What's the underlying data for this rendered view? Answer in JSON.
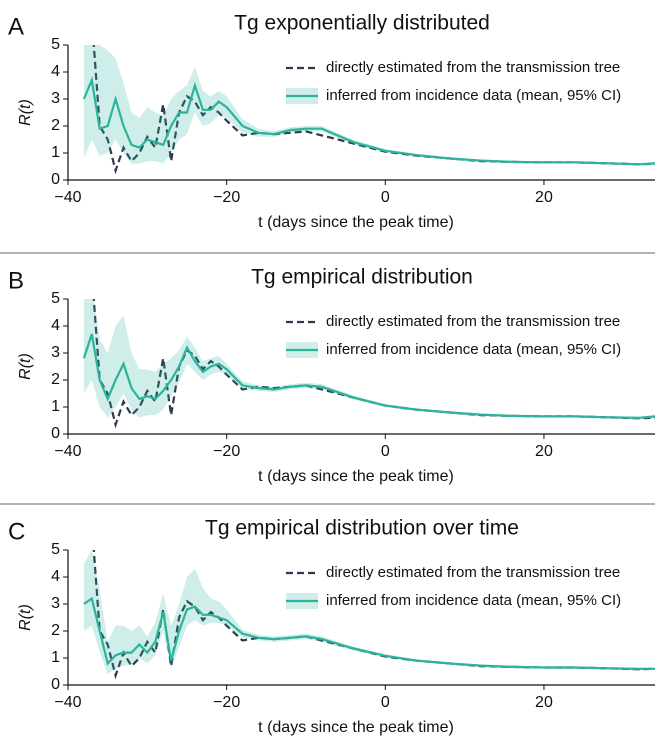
{
  "chart_data": [
    {
      "type": "line",
      "panel": "A",
      "title": "Tg exponentially distributed",
      "xlabel": "t (days since the peak time)",
      "ylabel": "R(t)",
      "xlim": [
        -40,
        34
      ],
      "ylim": [
        0,
        5
      ],
      "xticks": [
        {
          "value": -40,
          "label": "−40"
        },
        {
          "value": -20,
          "label": "−20"
        },
        0,
        20
      ],
      "yticks": [
        0,
        1,
        2,
        3,
        4,
        5
      ],
      "legend": "upper right",
      "x": [
        -38,
        -37,
        -36,
        -35,
        -34,
        -33,
        -32,
        -31,
        -30,
        -29,
        -28,
        -27,
        -26,
        -25,
        -24,
        -23,
        -22,
        -21,
        -20,
        -18,
        -16,
        -14,
        -12,
        -10,
        -8,
        -4,
        0,
        4,
        8,
        12,
        16,
        20,
        24,
        28,
        32,
        34
      ],
      "series": [
        {
          "name": "directly estimated from the transmission tree",
          "color": "#2b3a4f",
          "style": "dashed",
          "values": [
            null,
            6,
            2.0,
            1.5,
            0.35,
            1.2,
            0.7,
            1.0,
            1.6,
            1.2,
            2.8,
            0.7,
            2.5,
            3.1,
            2.9,
            2.4,
            2.7,
            2.5,
            2.2,
            1.65,
            1.75,
            1.7,
            1.75,
            1.8,
            1.65,
            1.35,
            1.05,
            0.9,
            0.8,
            0.7,
            0.67,
            0.65,
            0.65,
            0.62,
            0.58,
            0.6
          ]
        },
        {
          "name": "inferred from incidence data (mean, 95% CI)",
          "color": "#2bb39b",
          "style": "solid",
          "values": [
            3.0,
            3.7,
            1.9,
            2.0,
            3.0,
            2.0,
            1.3,
            1.2,
            1.5,
            1.4,
            1.3,
            2.0,
            2.5,
            2.5,
            3.5,
            2.6,
            2.6,
            2.9,
            2.7,
            2.0,
            1.75,
            1.7,
            1.85,
            1.9,
            1.9,
            1.4,
            1.08,
            0.92,
            0.8,
            0.72,
            0.67,
            0.65,
            0.65,
            0.62,
            0.58,
            0.62
          ],
          "ci_lower": [
            0.8,
            1.5,
            0.9,
            1.0,
            1.5,
            1.0,
            0.6,
            0.6,
            0.7,
            0.7,
            0.6,
            1.0,
            1.5,
            1.7,
            2.5,
            2.0,
            2.1,
            2.4,
            2.3,
            1.75,
            1.6,
            1.6,
            1.75,
            1.8,
            1.8,
            1.32,
            1.02,
            0.87,
            0.76,
            0.68,
            0.63,
            0.61,
            0.61,
            0.58,
            0.54,
            0.57
          ],
          "ci_upper": [
            5,
            6,
            5,
            4.8,
            4.5,
            3.6,
            2.5,
            2.3,
            2.7,
            2.5,
            2.4,
            3.0,
            3.3,
            3.5,
            4.2,
            3.3,
            3.1,
            3.3,
            3.1,
            2.25,
            1.9,
            1.8,
            1.95,
            2.0,
            2.0,
            1.48,
            1.14,
            0.97,
            0.84,
            0.76,
            0.71,
            0.69,
            0.69,
            0.66,
            0.62,
            0.67
          ]
        }
      ]
    },
    {
      "type": "line",
      "panel": "B",
      "title": "Tg empirical distribution",
      "xlabel": "t (days since the peak time)",
      "ylabel": "R(t)",
      "xlim": [
        -40,
        34
      ],
      "ylim": [
        0,
        5
      ],
      "xticks": [
        {
          "value": -40,
          "label": "−40"
        },
        {
          "value": -20,
          "label": "−20"
        },
        0,
        20
      ],
      "yticks": [
        0,
        1,
        2,
        3,
        4,
        5
      ],
      "legend": "upper right",
      "x": [
        -38,
        -37,
        -36,
        -35,
        -34,
        -33,
        -32,
        -31,
        -30,
        -29,
        -28,
        -27,
        -26,
        -25,
        -24,
        -23,
        -22,
        -21,
        -20,
        -18,
        -16,
        -14,
        -12,
        -10,
        -8,
        -4,
        0,
        4,
        8,
        12,
        16,
        20,
        24,
        28,
        32,
        34
      ],
      "series": [
        {
          "name": "directly estimated from the transmission tree",
          "color": "#2b3a4f",
          "style": "dashed",
          "values": [
            null,
            6,
            2.0,
            1.5,
            0.35,
            1.2,
            0.7,
            1.0,
            1.6,
            1.2,
            2.8,
            0.7,
            2.5,
            3.1,
            2.9,
            2.4,
            2.7,
            2.5,
            2.2,
            1.65,
            1.75,
            1.7,
            1.75,
            1.8,
            1.65,
            1.35,
            1.05,
            0.9,
            0.8,
            0.7,
            0.67,
            0.65,
            0.65,
            0.62,
            0.58,
            0.6
          ]
        },
        {
          "name": "inferred from incidence data (mean, 95% CI)",
          "color": "#2bb39b",
          "style": "solid",
          "values": [
            2.8,
            3.7,
            2.0,
            1.3,
            2.0,
            2.6,
            1.7,
            1.3,
            1.4,
            1.3,
            1.6,
            2.0,
            2.5,
            3.2,
            2.7,
            2.3,
            2.5,
            2.6,
            2.4,
            1.8,
            1.7,
            1.65,
            1.75,
            1.8,
            1.75,
            1.35,
            1.05,
            0.9,
            0.8,
            0.72,
            0.67,
            0.65,
            0.65,
            0.62,
            0.6,
            0.65
          ],
          "ci_lower": [
            1.5,
            2.0,
            1.0,
            0.6,
            1.0,
            1.5,
            0.9,
            0.6,
            0.7,
            0.7,
            0.9,
            1.4,
            1.9,
            2.6,
            2.3,
            2.0,
            2.2,
            2.3,
            2.2,
            1.65,
            1.6,
            1.55,
            1.65,
            1.7,
            1.65,
            1.28,
            1.0,
            0.85,
            0.76,
            0.68,
            0.63,
            0.61,
            0.61,
            0.58,
            0.56,
            0.6
          ],
          "ci_upper": [
            5,
            5.5,
            3.5,
            3.0,
            4.0,
            4.4,
            3.0,
            2.4,
            2.4,
            2.3,
            2.6,
            2.8,
            3.1,
            3.6,
            3.2,
            2.7,
            2.8,
            2.9,
            2.6,
            1.95,
            1.8,
            1.75,
            1.85,
            1.9,
            1.85,
            1.42,
            1.1,
            0.95,
            0.84,
            0.76,
            0.71,
            0.69,
            0.69,
            0.66,
            0.64,
            0.7
          ]
        }
      ]
    },
    {
      "type": "line",
      "panel": "C",
      "title": "Tg empirical distribution over time",
      "xlabel": "t (days since the peak time)",
      "ylabel": "R(t)",
      "xlim": [
        -40,
        34
      ],
      "ylim": [
        0,
        5
      ],
      "xticks": [
        {
          "value": -40,
          "label": "−40"
        },
        {
          "value": -20,
          "label": "−20"
        },
        0,
        20
      ],
      "yticks": [
        0,
        1,
        2,
        3,
        4,
        5
      ],
      "legend": "upper right",
      "x": [
        -38,
        -37,
        -36,
        -35,
        -34,
        -33,
        -32,
        -31,
        -30,
        -29,
        -28,
        -27,
        -26,
        -25,
        -24,
        -23,
        -22,
        -21,
        -20,
        -18,
        -16,
        -14,
        -12,
        -10,
        -8,
        -4,
        0,
        4,
        8,
        12,
        16,
        20,
        24,
        28,
        32,
        34
      ],
      "series": [
        {
          "name": "directly estimated from the transmission tree",
          "color": "#2b3a4f",
          "style": "dashed",
          "values": [
            null,
            6,
            2.0,
            1.5,
            0.35,
            1.2,
            0.7,
            1.0,
            1.6,
            1.2,
            2.8,
            0.7,
            2.5,
            3.1,
            2.9,
            2.4,
            2.7,
            2.5,
            2.2,
            1.65,
            1.75,
            1.7,
            1.75,
            1.8,
            1.65,
            1.35,
            1.05,
            0.9,
            0.8,
            0.7,
            0.67,
            0.65,
            0.65,
            0.62,
            0.58,
            0.6
          ]
        },
        {
          "name": "inferred from incidence data (mean, 95% CI)",
          "color": "#2bb39b",
          "style": "solid",
          "values": [
            3.0,
            3.2,
            2.0,
            0.8,
            1.1,
            1.2,
            1.2,
            1.5,
            1.2,
            1.6,
            2.7,
            0.9,
            2.0,
            2.8,
            2.9,
            2.6,
            2.6,
            2.5,
            2.4,
            1.9,
            1.75,
            1.7,
            1.75,
            1.8,
            1.7,
            1.35,
            1.08,
            0.9,
            0.8,
            0.72,
            0.67,
            0.65,
            0.65,
            0.62,
            0.6,
            0.6
          ],
          "ci_lower": [
            2.0,
            2.2,
            1.2,
            0.4,
            0.6,
            0.7,
            0.8,
            1.0,
            0.8,
            1.1,
            2.0,
            0.6,
            1.4,
            2.2,
            2.4,
            2.2,
            2.3,
            2.3,
            2.2,
            1.75,
            1.65,
            1.6,
            1.65,
            1.7,
            1.6,
            1.28,
            1.02,
            0.85,
            0.76,
            0.68,
            0.63,
            0.61,
            0.61,
            0.58,
            0.56,
            0.56
          ],
          "ci_upper": [
            4.5,
            5,
            3.5,
            1.6,
            2.2,
            2.2,
            2.0,
            2.2,
            1.8,
            2.3,
            3.4,
            2.2,
            3.0,
            4.0,
            4.3,
            3.6,
            3.2,
            3.1,
            2.8,
            2.05,
            1.85,
            1.8,
            1.85,
            1.9,
            1.8,
            1.42,
            1.14,
            0.95,
            0.84,
            0.76,
            0.71,
            0.69,
            0.69,
            0.66,
            0.64,
            0.64
          ]
        }
      ]
    }
  ]
}
